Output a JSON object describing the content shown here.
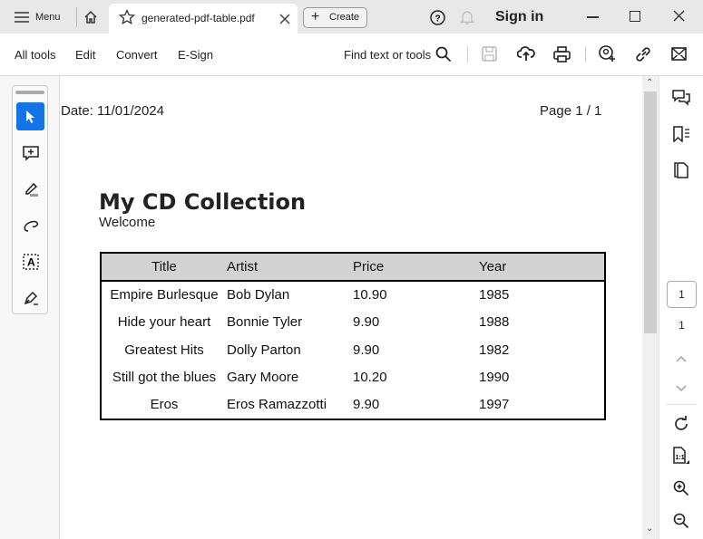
{
  "titlebar": {
    "menu": "Menu",
    "tab_title": "generated-pdf-table.pdf",
    "create": "Create",
    "sign_in": "Sign in"
  },
  "toolbar": {
    "all_tools": "All tools",
    "edit": "Edit",
    "convert": "Convert",
    "esign": "E-Sign",
    "find": "Find text or tools"
  },
  "document": {
    "date": "Date: 11/01/2024",
    "page": "Page 1 / 1",
    "heading": "My CD Collection",
    "subheading": "Welcome",
    "table": {
      "headers": [
        "Title",
        "Artist",
        "Price",
        "Year"
      ],
      "rows": [
        [
          "Empire Burlesque",
          "Bob Dylan",
          "10.90",
          "1985"
        ],
        [
          "Hide your heart",
          "Bonnie Tyler",
          "9.90",
          "1988"
        ],
        [
          "Greatest Hits",
          "Dolly Parton",
          "9.90",
          "1982"
        ],
        [
          "Still got the blues",
          "Gary Moore",
          "10.20",
          "1990"
        ],
        [
          "Eros",
          "Eros Ramazzotti",
          "9.90",
          "1997"
        ]
      ]
    }
  },
  "pagenav": {
    "current": "1",
    "total": "1"
  },
  "colors": {
    "accent": "#1473e6"
  }
}
